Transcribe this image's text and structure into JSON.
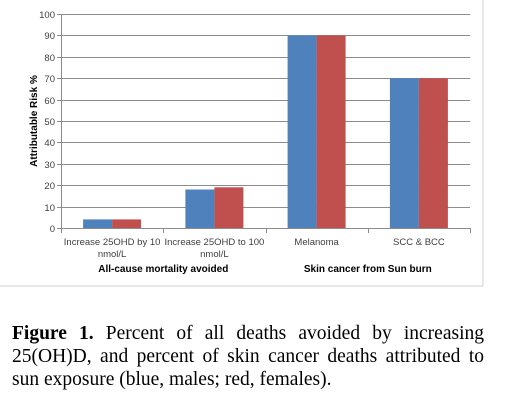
{
  "chart_data": {
    "type": "bar",
    "categories": [
      [
        "Increase 25OHD by 10",
        "nmol/L"
      ],
      [
        "Increase 25OHD to 100",
        "nmol/L"
      ],
      [
        "Melanoma"
      ],
      [
        "SCC & BCC"
      ]
    ],
    "series": [
      {
        "color": "#4f81bd",
        "values": [
          4,
          18,
          90,
          70
        ]
      },
      {
        "color": "#c0504d",
        "values": [
          4,
          19,
          90,
          70
        ]
      }
    ],
    "ylabel": "Attributable Risk %",
    "ylim": [
      0,
      100
    ],
    "yticks": [
      0,
      10,
      20,
      30,
      40,
      50,
      60,
      70,
      80,
      90,
      100
    ],
    "grid": true,
    "groups": [
      {
        "label": "All-cause mortality avoided",
        "categories": [
          0,
          1
        ]
      },
      {
        "label": "Skin cancer from Sun burn",
        "categories": [
          2,
          3
        ]
      }
    ]
  },
  "caption": {
    "label": "Figure 1.",
    "text": " Percent of all deaths avoided by increasing 25(OH)D, and percent of skin cancer deaths attributed to sun exposure (blue, males; red, females)."
  }
}
